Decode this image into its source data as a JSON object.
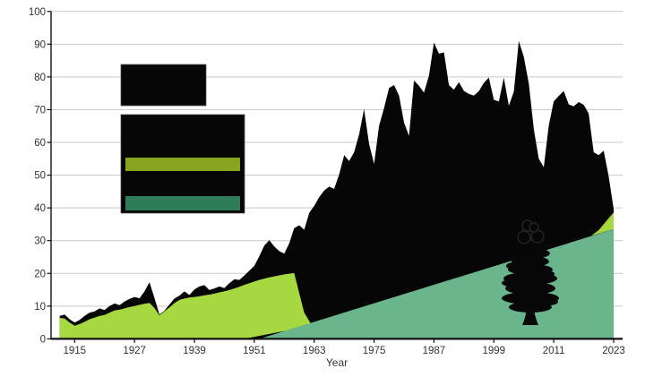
{
  "chart_data": {
    "type": "area",
    "title": "",
    "xlabel": "Year",
    "ylabel": "",
    "xlim": [
      1910.3,
      2024.8
    ],
    "ylim": [
      0,
      100
    ],
    "grid": true,
    "x_ticks": [
      1915,
      1927,
      1939,
      1951,
      1963,
      1975,
      1987,
      1999,
      2011,
      2023
    ],
    "y_ticks": [
      0,
      10,
      20,
      30,
      40,
      50,
      60,
      70,
      80,
      90,
      100
    ],
    "series": [
      {
        "name": "black-total-area",
        "color": "#060606",
        "top": [
          [
            1912,
            7.0
          ],
          [
            1913,
            7.4
          ],
          [
            1914,
            6.0
          ],
          [
            1915,
            5.0
          ],
          [
            1916,
            5.8
          ],
          [
            1917,
            7.0
          ],
          [
            1918,
            8.0
          ],
          [
            1919,
            8.4
          ],
          [
            1920,
            9.3
          ],
          [
            1921,
            8.8
          ],
          [
            1922,
            10.0
          ],
          [
            1923,
            10.8
          ],
          [
            1924,
            10.3
          ],
          [
            1925,
            11.4
          ],
          [
            1926,
            12.2
          ],
          [
            1927,
            12.8
          ],
          [
            1928,
            12.4
          ],
          [
            1929,
            14.5
          ],
          [
            1930,
            17.3
          ],
          [
            1931,
            12.5
          ],
          [
            1932,
            7.4
          ],
          [
            1933,
            8.6
          ],
          [
            1934,
            10.5
          ],
          [
            1935,
            12.3
          ],
          [
            1936,
            13.2
          ],
          [
            1937,
            14.5
          ],
          [
            1938,
            13.4
          ],
          [
            1939,
            15.1
          ],
          [
            1940,
            16.0
          ],
          [
            1941,
            16.4
          ],
          [
            1942,
            14.9
          ],
          [
            1943,
            15.4
          ],
          [
            1944,
            16.0
          ],
          [
            1945,
            15.5
          ],
          [
            1946,
            17.0
          ],
          [
            1947,
            18.2
          ],
          [
            1948,
            18.0
          ],
          [
            1949,
            19.3
          ],
          [
            1950,
            20.8
          ],
          [
            1951,
            22.3
          ],
          [
            1952,
            25.2
          ],
          [
            1953,
            28.5
          ],
          [
            1954,
            30.1
          ],
          [
            1955,
            28.2
          ],
          [
            1956,
            26.8
          ],
          [
            1957,
            26.0
          ],
          [
            1958,
            29.2
          ],
          [
            1959,
            33.8
          ],
          [
            1960,
            34.7
          ],
          [
            1961,
            33.3
          ],
          [
            1962,
            38.5
          ],
          [
            1963,
            40.6
          ],
          [
            1964,
            43.3
          ],
          [
            1965,
            45.3
          ],
          [
            1966,
            46.5
          ],
          [
            1967,
            45.8
          ],
          [
            1968,
            50.2
          ],
          [
            1969,
            56.1
          ],
          [
            1970,
            54.3
          ],
          [
            1971,
            57.0
          ],
          [
            1972,
            62.5
          ],
          [
            1973,
            70.2
          ],
          [
            1974,
            59.5
          ],
          [
            1975,
            53.4
          ],
          [
            1976,
            65.0
          ],
          [
            1977,
            70.5
          ],
          [
            1978,
            76.6
          ],
          [
            1979,
            77.5
          ],
          [
            1980,
            74.3
          ],
          [
            1981,
            66.1
          ],
          [
            1982,
            62.0
          ],
          [
            1983,
            78.9
          ],
          [
            1984,
            77.3
          ],
          [
            1985,
            75.2
          ],
          [
            1986,
            80.5
          ],
          [
            1987,
            90.5
          ],
          [
            1988,
            87.1
          ],
          [
            1989,
            87.5
          ],
          [
            1990,
            77.5
          ],
          [
            1991,
            76.1
          ],
          [
            1992,
            78.4
          ],
          [
            1993,
            75.7
          ],
          [
            1994,
            74.8
          ],
          [
            1995,
            74.3
          ],
          [
            1996,
            75.7
          ],
          [
            1997,
            78.2
          ],
          [
            1998,
            79.8
          ],
          [
            1999,
            73.0
          ],
          [
            2000,
            72.5
          ],
          [
            2001,
            79.8
          ],
          [
            2002,
            71.2
          ],
          [
            2003,
            75.5
          ],
          [
            2004,
            91.0
          ],
          [
            2005,
            86.2
          ],
          [
            2006,
            78.0
          ],
          [
            2007,
            64.0
          ],
          [
            2008,
            55.0
          ],
          [
            2009,
            52.4
          ],
          [
            2010,
            65.2
          ],
          [
            2011,
            72.5
          ],
          [
            2012,
            74.2
          ],
          [
            2013,
            75.7
          ],
          [
            2014,
            71.6
          ],
          [
            2015,
            71.0
          ],
          [
            2016,
            72.3
          ],
          [
            2017,
            71.5
          ],
          [
            2018,
            68.8
          ],
          [
            2019,
            57.0
          ],
          [
            2020,
            56.1
          ],
          [
            2021,
            57.5
          ],
          [
            2022,
            49.7
          ],
          [
            2023,
            39.7
          ]
        ]
      },
      {
        "name": "light-green-band",
        "color": "#a6d83f",
        "top": [
          [
            1912,
            6.4
          ],
          [
            1913,
            6.2
          ],
          [
            1914,
            5.0
          ],
          [
            1915,
            4.0
          ],
          [
            1916,
            4.5
          ],
          [
            1917,
            5.2
          ],
          [
            1918,
            6.0
          ],
          [
            1919,
            6.5
          ],
          [
            1920,
            7.0
          ],
          [
            1921,
            7.3
          ],
          [
            1922,
            8.0
          ],
          [
            1923,
            8.7
          ],
          [
            1924,
            8.9
          ],
          [
            1925,
            9.3
          ],
          [
            1926,
            9.7
          ],
          [
            1927,
            10.0
          ],
          [
            1928,
            10.4
          ],
          [
            1929,
            10.7
          ],
          [
            1930,
            11.0
          ],
          [
            1931,
            9.4
          ],
          [
            1932,
            7.2
          ],
          [
            1933,
            8.4
          ],
          [
            1934,
            9.6
          ],
          [
            1935,
            10.9
          ],
          [
            1936,
            11.9
          ],
          [
            1937,
            12.3
          ],
          [
            1938,
            12.6
          ],
          [
            1939,
            12.8
          ],
          [
            1940,
            13.0
          ],
          [
            1941,
            13.3
          ],
          [
            1942,
            13.5
          ],
          [
            1943,
            13.8
          ],
          [
            1944,
            14.2
          ],
          [
            1945,
            14.5
          ],
          [
            1946,
            14.9
          ],
          [
            1947,
            15.4
          ],
          [
            1948,
            15.9
          ],
          [
            1949,
            16.5
          ],
          [
            1950,
            17.0
          ],
          [
            1951,
            17.5
          ],
          [
            1952,
            18.0
          ],
          [
            1953,
            18.4
          ],
          [
            1954,
            18.8
          ],
          [
            1955,
            19.1
          ],
          [
            1956,
            19.4
          ],
          [
            1957,
            19.7
          ],
          [
            1958,
            19.9
          ],
          [
            1959,
            20.1
          ],
          [
            1960,
            14.0
          ],
          [
            1961,
            8.0
          ],
          [
            1962.5,
            4.2
          ]
        ],
        "bottom": [
          [
            1912,
            0
          ],
          [
            1949,
            0
          ],
          [
            1953,
            1.2
          ],
          [
            1957,
            2.4
          ],
          [
            1960,
            3.3
          ],
          [
            1962.5,
            4.2
          ]
        ]
      },
      {
        "name": "light-green-end-wedge",
        "color": "#a6d83f",
        "top": [
          [
            2018.5,
            31.5
          ],
          [
            2020,
            33.2
          ],
          [
            2021,
            35.0
          ],
          [
            2022,
            36.8
          ],
          [
            2023,
            38.6
          ]
        ],
        "bottom": [
          [
            2018.5,
            31.5
          ],
          [
            2023,
            33.5
          ]
        ]
      },
      {
        "name": "teal-triangle",
        "color": "#6ab58c",
        "top": [
          [
            1952,
            0
          ],
          [
            2023,
            33.5
          ]
        ]
      }
    ],
    "legend": {
      "position": "upper-left-inside-plot",
      "box1": {
        "name": "black-area-swatch",
        "fill": "#060606"
      },
      "box2": {
        "name": "striped-swatch-box",
        "fill": "#060606",
        "stripe1_color": "#87a41e",
        "stripe2_color": "#2f7d58"
      }
    }
  },
  "colors": {
    "background": "#ffffff",
    "grid": "#c9c9c9",
    "axis": "#111111",
    "tick_text": "#333333",
    "tree": "#070707",
    "tree_outline": "#2f2f2f"
  }
}
